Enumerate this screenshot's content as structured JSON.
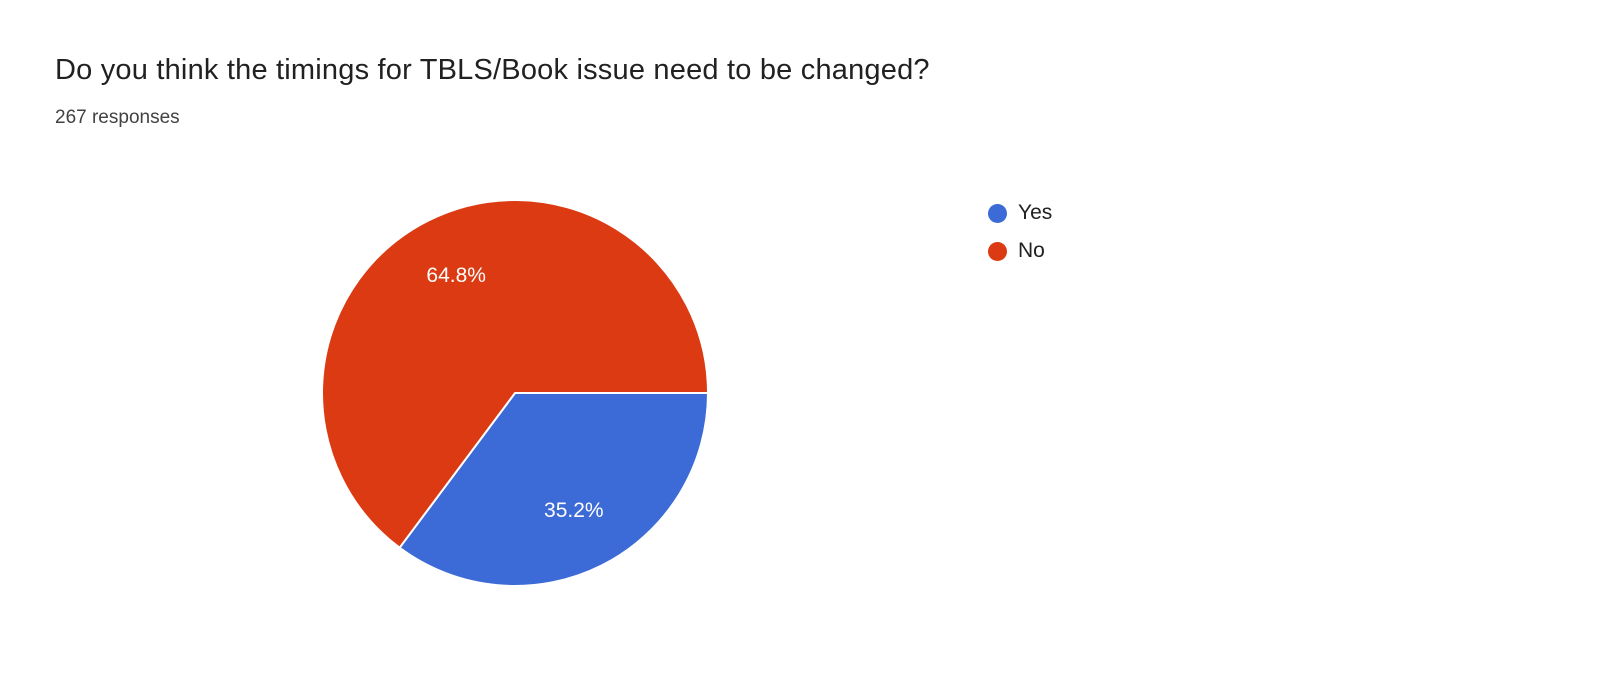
{
  "header": {
    "title": "Do you think the timings for TBLS/Book issue need to be changed?",
    "responses_label": "267 responses"
  },
  "chart_data": {
    "type": "pie",
    "title": "Do you think the timings for TBLS/Book issue need to be changed?",
    "responses_count": 267,
    "categories": [
      "Yes",
      "No"
    ],
    "values": [
      35.2,
      64.8
    ],
    "slices": [
      {
        "label": "Yes",
        "percent": 35.2,
        "display": "35.2%",
        "color": "#3c6ad6"
      },
      {
        "label": "No",
        "percent": 64.8,
        "display": "64.8%",
        "color": "#dc3a12"
      }
    ],
    "start_angle_deg": 90,
    "direction": "clockwise",
    "legend_position": "right",
    "label_color": "#ffffff",
    "background_color": "#ffffff"
  }
}
